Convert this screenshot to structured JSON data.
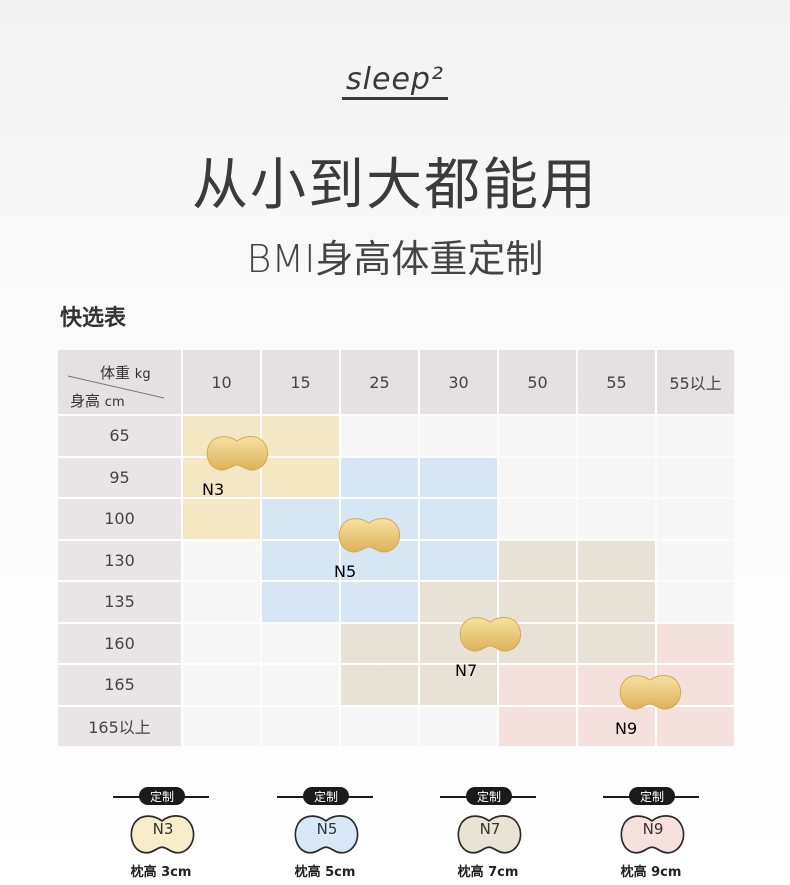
{
  "logo": "sleep²",
  "title": "从小到大都能用",
  "subtitle": "BMI身高体重定制",
  "section_title": "快选表",
  "table": {
    "corner": {
      "weight": "体重",
      "weight_unit": "kg",
      "height": "身高",
      "height_unit": "cm"
    },
    "columns": [
      "10",
      "15",
      "25",
      "30",
      "50",
      "55",
      "55以上"
    ],
    "rows": [
      "65",
      "95",
      "100",
      "130",
      "135",
      "160",
      "165",
      "165以上"
    ],
    "badges": [
      "N3",
      "N5",
      "N7",
      "N9"
    ]
  },
  "legend": [
    {
      "tag": "定制",
      "label": "N3",
      "height": "枕高 3cm"
    },
    {
      "tag": "定制",
      "label": "N5",
      "height": "枕高 5cm"
    },
    {
      "tag": "定制",
      "label": "N7",
      "height": "枕高 7cm"
    },
    {
      "tag": "定制",
      "label": "N9",
      "height": "枕高 9cm"
    }
  ]
}
